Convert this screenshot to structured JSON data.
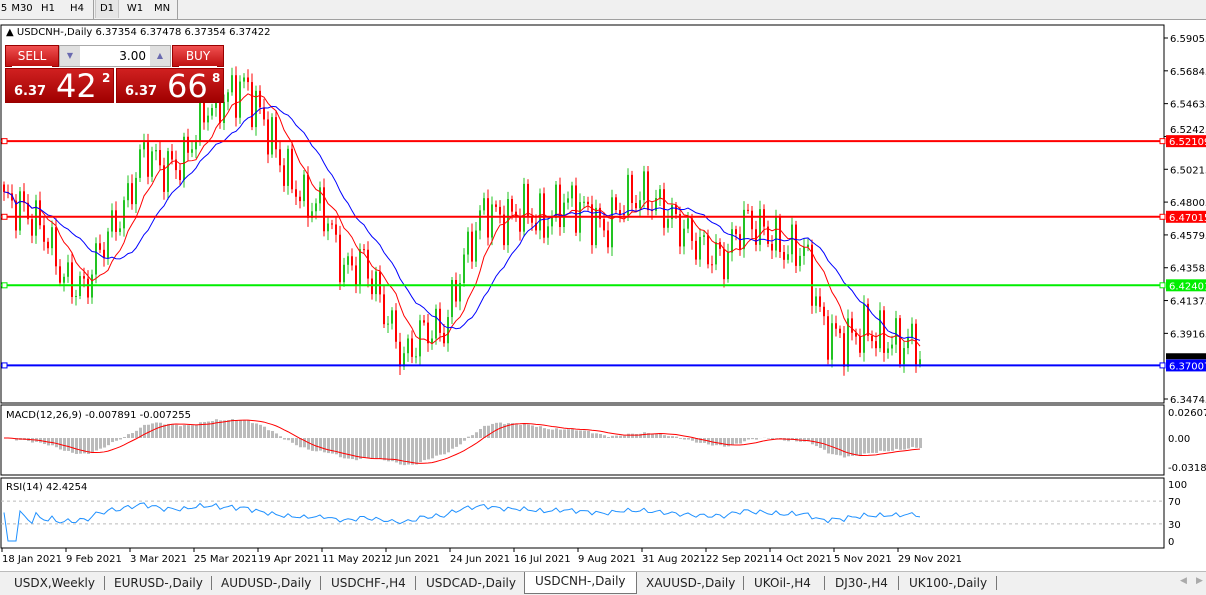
{
  "toolbar": {
    "timeframes": [
      "5",
      "M30",
      "H1",
      "H4",
      "D1",
      "W1",
      "MN"
    ],
    "active": "D1"
  },
  "symbol_header": "USDCNH-,Daily  6.37354 6.37478 6.37354 6.37422",
  "one_click": {
    "sell_label": "SELL",
    "buy_label": "BUY",
    "lot": "3.00",
    "sell_big": "6.37",
    "sell_pips": "42",
    "sell_frac": "2",
    "buy_big": "6.37",
    "buy_pips": "66",
    "buy_frac": "8"
  },
  "chart_data": {
    "type": "candlestick",
    "price_ticks": [
      "6.59055",
      "6.56845",
      "6.54635",
      "6.52425",
      "6.50215",
      "6.48005",
      "6.45795",
      "6.43585",
      "6.41375",
      "6.39165",
      "6.34745"
    ],
    "x_ticks": [
      "18 Jan 2021",
      "9 Feb 2021",
      "3 Mar 2021",
      "25 Mar 2021",
      "19 Apr 2021",
      "11 May 2021",
      "2 Jun 2021",
      "24 Jun 2021",
      "16 Jul 2021",
      "9 Aug 2021",
      "31 Aug 2021",
      "22 Sep 2021",
      "14 Oct 2021",
      "5 Nov 2021",
      "29 Nov 2021"
    ],
    "weekly_closes": [
      6.481,
      6.475,
      6.461,
      6.428,
      6.421,
      6.454,
      6.475,
      6.515,
      6.502,
      6.508,
      6.542,
      6.549,
      6.559,
      6.535,
      6.502,
      6.481,
      6.475,
      6.434,
      6.441,
      6.408,
      6.374,
      6.394,
      6.394,
      6.441,
      6.475,
      6.468,
      6.475,
      6.465,
      6.481,
      6.475,
      6.461,
      6.481,
      6.485,
      6.475,
      6.461,
      6.448,
      6.441,
      6.468,
      6.461,
      6.448,
      6.448,
      6.394,
      6.387,
      6.394,
      6.387,
      6.384,
      6.39,
      6.37,
      6.374
    ],
    "hlines": [
      {
        "price": "6.52109",
        "color": "#ff0000"
      },
      {
        "price": "6.47015",
        "color": "#ff0000"
      },
      {
        "price": "6.42401",
        "color": "#00ee00"
      },
      {
        "price": "6.37007",
        "color": "#0000ff"
      }
    ],
    "current_price": "6.37422",
    "macd": {
      "label": "MACD(12,26,9) -0.007891 -0.007255",
      "ticks": [
        "0.02607",
        "0.00",
        "-0.031872"
      ]
    },
    "rsi": {
      "label": "RSI(14) 42.4254",
      "ticks": [
        "100",
        "70",
        "30",
        "0"
      ],
      "levels": [
        70,
        30
      ]
    },
    "colors": {
      "up": "#22c322",
      "down": "#ff0000",
      "ma_fast": "#ff0000",
      "ma_slow": "#0000ff"
    }
  },
  "tabs": [
    "USDX,Weekly",
    "EURUSD-,Daily",
    "AUDUSD-,Daily",
    "USDCHF-,H4",
    "USDCAD-,Daily",
    "USDCNH-,Daily",
    "XAUUSD-,Daily",
    "UKOil-,H4",
    "DJ30-,H4",
    "UK100-,Daily"
  ],
  "active_tab": "USDCNH-,Daily"
}
